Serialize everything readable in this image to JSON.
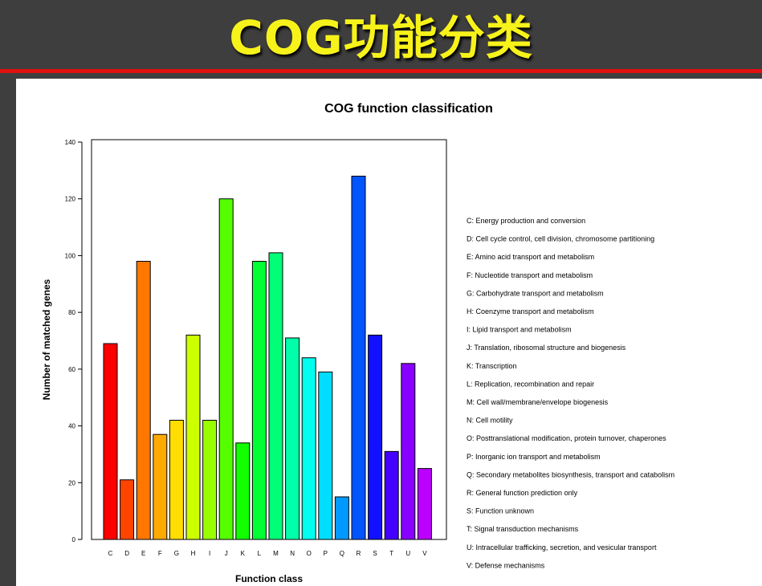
{
  "slide": {
    "title": "COG功能分类"
  },
  "chart_data": {
    "type": "bar",
    "title": "COG function classification",
    "xlabel": "Function class",
    "ylabel": "Number of matched genes",
    "ylim": [
      0,
      140
    ],
    "yticks": [
      0,
      20,
      40,
      60,
      80,
      100,
      120,
      140
    ],
    "categories": [
      "C",
      "D",
      "E",
      "F",
      "G",
      "H",
      "I",
      "J",
      "K",
      "L",
      "M",
      "N",
      "O",
      "P",
      "Q",
      "R",
      "S",
      "T",
      "U",
      "V"
    ],
    "values": [
      69,
      21,
      98,
      37,
      42,
      72,
      42,
      120,
      34,
      98,
      101,
      71,
      64,
      59,
      15,
      128,
      72,
      31,
      62,
      25
    ],
    "colors": [
      "#ff0000",
      "#ff4400",
      "#ff7700",
      "#ffaa00",
      "#ffdd00",
      "#ccff00",
      "#99ff00",
      "#55ff00",
      "#11ff00",
      "#00ff33",
      "#00ff77",
      "#00ffaa",
      "#00ffee",
      "#00ddff",
      "#0099ff",
      "#0055ff",
      "#1111ff",
      "#4400ff",
      "#8800ff",
      "#bb00ff"
    ],
    "legend": [
      "C: Energy production and conversion",
      "D: Cell cycle control, cell division, chromosome partitioning",
      "E: Amino acid transport and metabolism",
      "F: Nucleotide transport and metabolism",
      "G: Carbohydrate transport and metabolism",
      "H: Coenzyme transport and metabolism",
      "I: Lipid transport and metabolism",
      "J: Translation, ribosomal structure and biogenesis",
      "K: Transcription",
      "L: Replication, recombination and repair",
      "M: Cell wall/membrane/envelope biogenesis",
      "N: Cell motility",
      "O: Posttranslational modification, protein turnover, chaperones",
      "P: Inorganic ion transport and metabolism",
      "Q: Secondary metabolites biosynthesis, transport and catabolism",
      "R: General function prediction only",
      "S: Function unknown",
      "T: Signal transduction mechanisms",
      "U: Intracellular trafficking, secretion, and vesicular transport",
      "V: Defense mechanisms"
    ],
    "legend_position": "right",
    "grid": false
  },
  "style": {
    "background": "#3e3e3e",
    "title_color": "#f7f31a",
    "rule_color": "#e01010",
    "panel_color": "#ffffff"
  }
}
